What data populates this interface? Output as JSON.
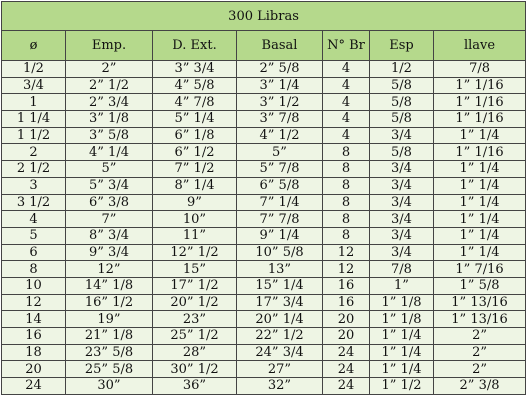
{
  "title": "300 Libras",
  "headers": [
    "ø",
    "Emp.",
    "D. Ext.",
    "Basal",
    "N° Br",
    "Esp",
    "llave"
  ],
  "rows": [
    [
      "1/2",
      "2”",
      "3” 3/4",
      "2” 5/8",
      "4",
      "1/2",
      "7/8"
    ],
    [
      "3/4",
      "2” 1/2",
      "4” 5/8",
      "3” 1/4",
      "4",
      "5/8",
      "1” 1/16"
    ],
    [
      "1",
      "2” 3/4",
      "4” 7/8",
      "3” 1/2",
      "4",
      "5/8",
      "1” 1/16"
    ],
    [
      "1 1/4",
      "3” 1/8",
      "5” 1/4",
      "3” 7/8",
      "4",
      "5/8",
      "1” 1/16"
    ],
    [
      "1 1/2",
      "3” 5/8",
      "6” 1/8",
      "4” 1/2",
      "4",
      "3/4",
      "1” 1/4"
    ],
    [
      "2",
      "4” 1/4",
      "6” 1/2",
      "5”",
      "8",
      "5/8",
      "1” 1/16"
    ],
    [
      "2 1/2",
      "5”",
      "7” 1/2",
      "5” 7/8",
      "8",
      "3/4",
      "1” 1/4"
    ],
    [
      "3",
      "5” 3/4",
      "8” 1/4",
      "6” 5/8",
      "8",
      "3/4",
      "1” 1/4"
    ],
    [
      "3 1/2",
      "6” 3/8",
      "9”",
      "7” 1/4",
      "8",
      "3/4",
      "1” 1/4"
    ],
    [
      "4",
      "7”",
      "10”",
      "7” 7/8",
      "8",
      "3/4",
      "1” 1/4"
    ],
    [
      "5",
      "8” 3/4",
      "11”",
      "9” 1/4",
      "8",
      "3/4",
      "1” 1/4"
    ],
    [
      "6",
      "9” 3/4",
      "12” 1/2",
      "10” 5/8",
      "12",
      "3/4",
      "1” 1/4"
    ],
    [
      "8",
      "12”",
      "15”",
      "13”",
      "12",
      "7/8",
      "1” 7/16"
    ],
    [
      "10",
      "14” 1/8",
      "17” 1/2",
      "15” 1/4",
      "16",
      "1”",
      "1” 5/8"
    ],
    [
      "12",
      "16” 1/2",
      "20” 1/2",
      "17” 3/4",
      "16",
      "1” 1/8",
      "1” 13/16"
    ],
    [
      "14",
      "19”",
      "23”",
      "20” 1/4",
      "20",
      "1” 1/8",
      "1” 13/16"
    ],
    [
      "16",
      "21” 1/8",
      "25” 1/2",
      "22” 1/2",
      "20",
      "1” 1/4",
      "2”"
    ],
    [
      "18",
      "23” 5/8",
      "28”",
      "24” 3/4",
      "24",
      "1” 1/4",
      "2”"
    ],
    [
      "20",
      "25” 5/8",
      "30” 1/2",
      "27”",
      "24",
      "1” 1/4",
      "2”"
    ],
    [
      "24",
      "30”",
      "36”",
      "32”",
      "24",
      "1” 1/2",
      "2” 3/8"
    ]
  ]
}
